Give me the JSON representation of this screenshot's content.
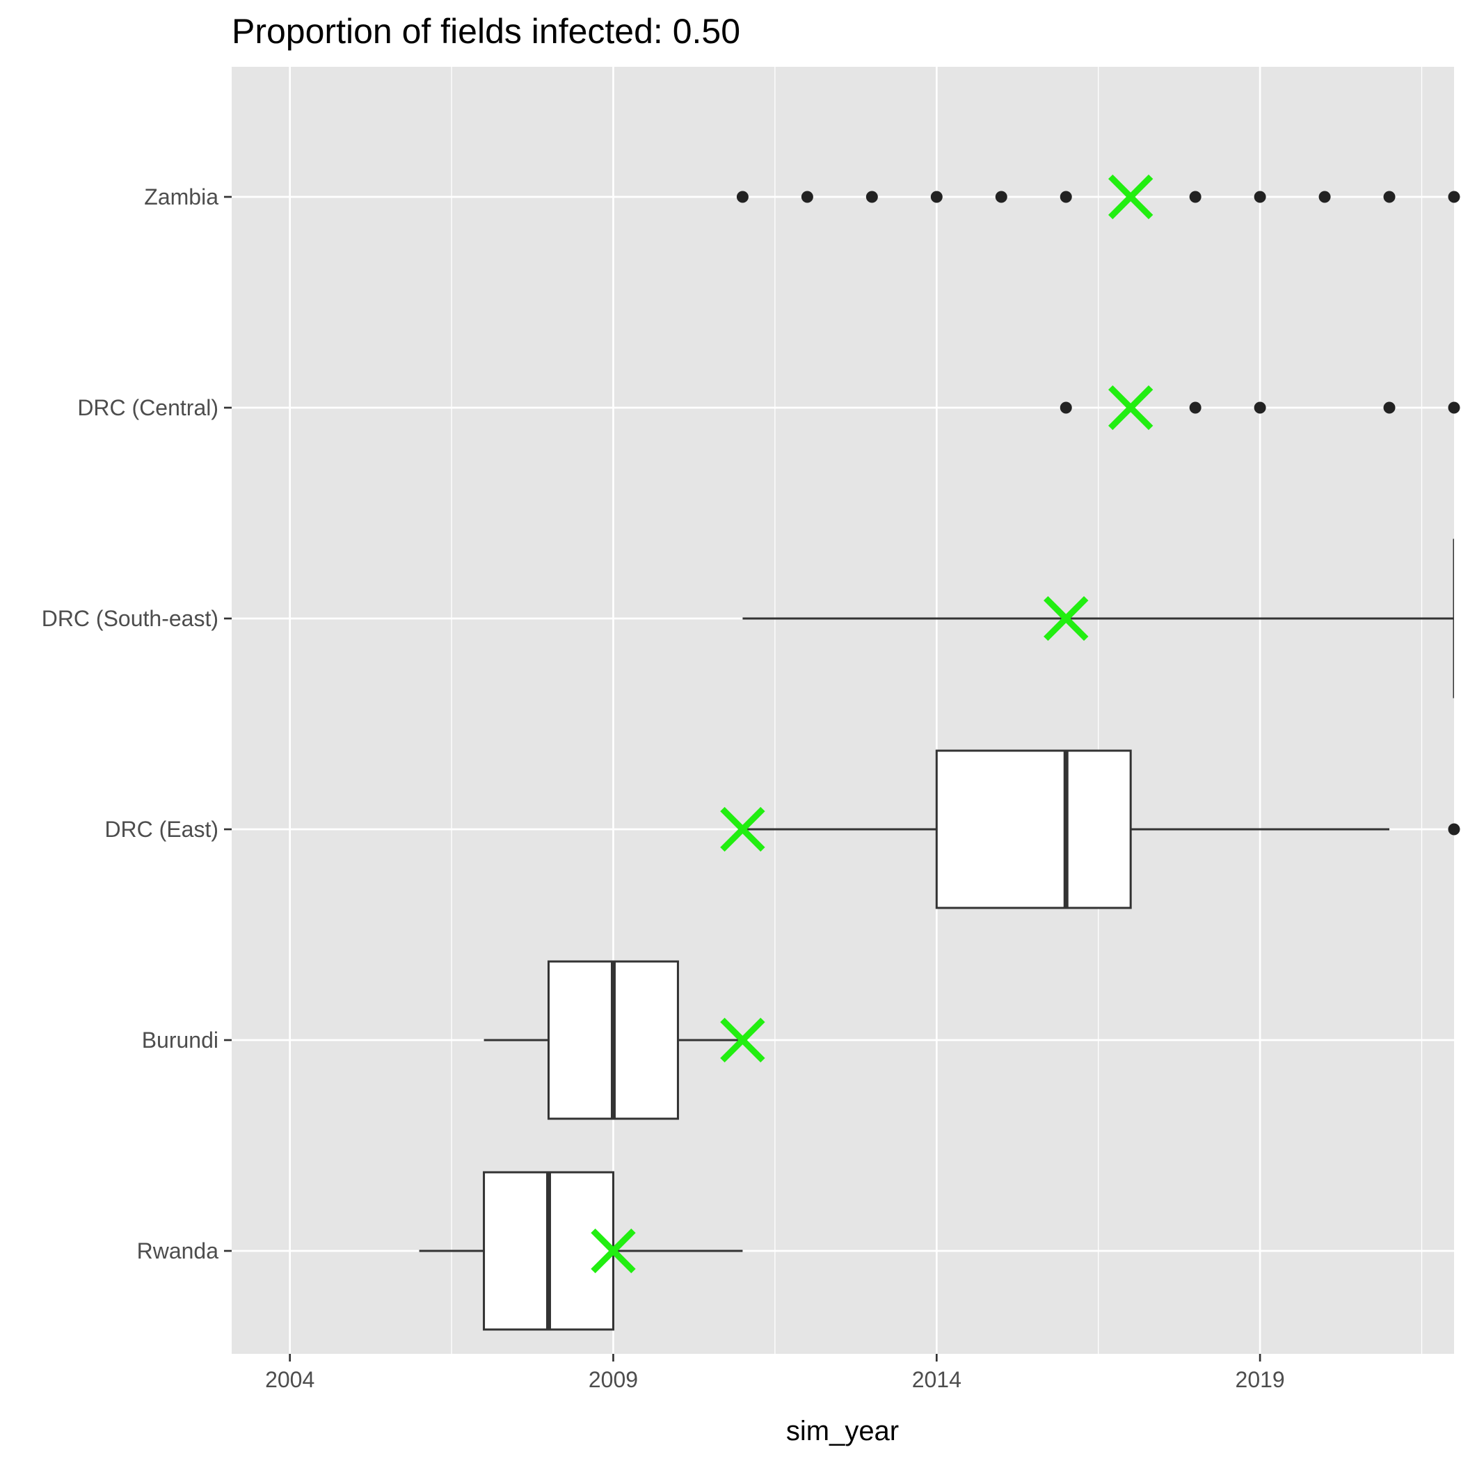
{
  "chart_data": {
    "type": "boxplot",
    "orientation": "horizontal",
    "title": "Proportion of fields infected: 0.50",
    "xlabel": "sim_year",
    "ylabel": "",
    "xlim": [
      2003.1,
      2022.0
    ],
    "xticks": [
      2004,
      2009,
      2014,
      2019
    ],
    "xtick_labels": [
      "2004",
      "2009",
      "2014",
      "2019"
    ],
    "categories": [
      "Rwanda",
      "Burundi",
      "DRC (East)",
      "DRC (South-east)",
      "DRC (Central)",
      "Zambia"
    ],
    "grid": true,
    "legend": "none",
    "colors": {
      "panel": "#e5e5e5",
      "gridline": "#ffffff",
      "box_fill": "#ffffff",
      "box_line": "#333333",
      "outlier": "#222222",
      "marker": "#22ee11"
    },
    "boxes": [
      {
        "category": "Rwanda",
        "whisker_low": 2006,
        "q1": 2007,
        "median": 2008,
        "q3": 2009,
        "whisker_high": 2011,
        "outliers": []
      },
      {
        "category": "Burundi",
        "whisker_low": 2007,
        "q1": 2008,
        "median": 2009,
        "q3": 2010,
        "whisker_high": 2011,
        "outliers": []
      },
      {
        "category": "DRC (East)",
        "whisker_low": 2011,
        "q1": 2014,
        "median": 2016,
        "q3": 2017,
        "whisker_high": 2021,
        "outliers": [
          2022
        ]
      },
      {
        "category": "DRC (South-east)",
        "whisker_low": 2011,
        "q1": 2022,
        "median": null,
        "q3": null,
        "whisker_high": 2022,
        "outliers": []
      },
      {
        "category": "DRC (Central)",
        "whisker_low": null,
        "q1": null,
        "median": null,
        "q3": null,
        "whisker_high": null,
        "outliers": [
          2016,
          2018,
          2019,
          2021,
          2022
        ]
      },
      {
        "category": "Zambia",
        "whisker_low": null,
        "q1": null,
        "median": null,
        "q3": null,
        "whisker_high": null,
        "outliers": [
          2011,
          2012,
          2013,
          2014,
          2015,
          2016,
          2018,
          2019,
          2020,
          2021,
          2022
        ]
      }
    ],
    "observed": [
      {
        "category": "Rwanda",
        "year": 2009
      },
      {
        "category": "Burundi",
        "year": 2011
      },
      {
        "category": "DRC (East)",
        "year": 2011
      },
      {
        "category": "DRC (South-east)",
        "year": 2016
      },
      {
        "category": "DRC (Central)",
        "year": 2017
      },
      {
        "category": "Zambia",
        "year": 2017
      }
    ]
  }
}
